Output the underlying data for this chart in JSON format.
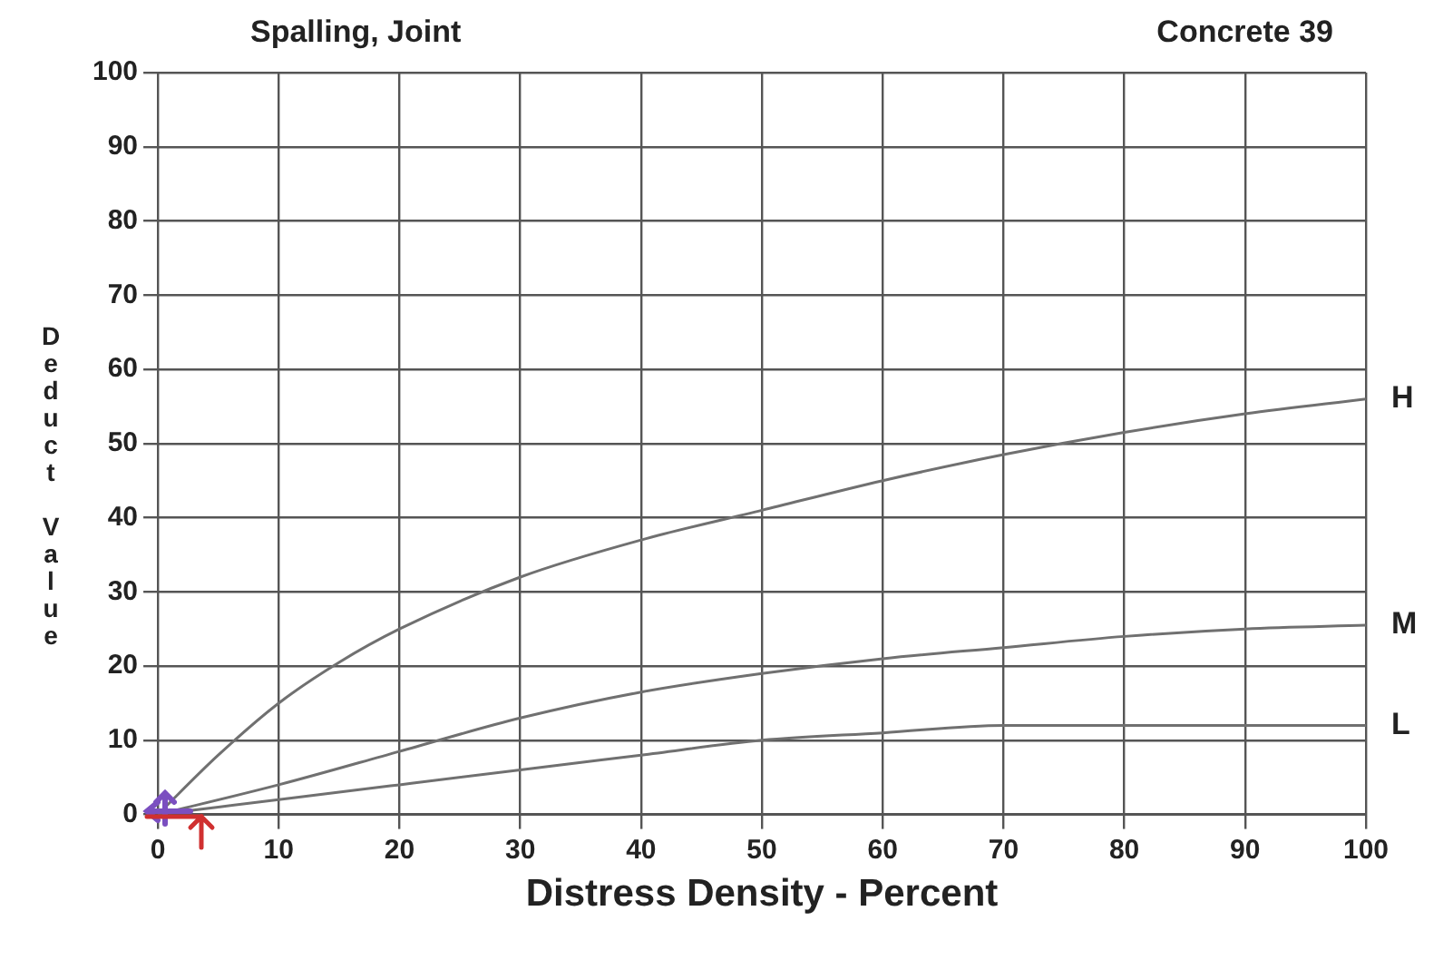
{
  "chart_data": {
    "type": "line",
    "title": "Spalling, Joint",
    "subtitle": "Concrete 39",
    "xlabel": "Distress Density - Percent",
    "ylabel": "Deduct Value",
    "xlim": [
      0,
      100
    ],
    "xticks": [
      0,
      10,
      20,
      30,
      40,
      50,
      60,
      70,
      80,
      90,
      100
    ],
    "ylim": [
      0,
      100
    ],
    "yticks": [
      0,
      10,
      20,
      30,
      40,
      50,
      60,
      70,
      80,
      90,
      100
    ],
    "grid": true,
    "legend": false,
    "marker": "none",
    "line_style": "solid",
    "series": [
      {
        "name": "H",
        "color": "#707070",
        "x": [
          0,
          5,
          10,
          15,
          20,
          30,
          40,
          50,
          60,
          70,
          80,
          90,
          100
        ],
        "values": [
          0,
          8,
          15,
          20.5,
          25,
          32,
          37,
          41,
          45,
          48.5,
          51.5,
          54,
          56
        ]
      },
      {
        "name": "M",
        "color": "#707070",
        "x": [
          0,
          10,
          20,
          30,
          40,
          50,
          60,
          70,
          80,
          90,
          100
        ],
        "values": [
          0,
          4,
          8.5,
          13,
          16.5,
          19,
          21,
          22.5,
          24,
          25,
          25.5
        ]
      },
      {
        "name": "L",
        "color": "#707070",
        "x": [
          0,
          10,
          20,
          30,
          40,
          50,
          60,
          70,
          80,
          90,
          100
        ],
        "values": [
          0,
          2,
          4,
          6,
          8,
          10,
          11,
          12,
          12,
          12,
          12
        ]
      }
    ]
  }
}
